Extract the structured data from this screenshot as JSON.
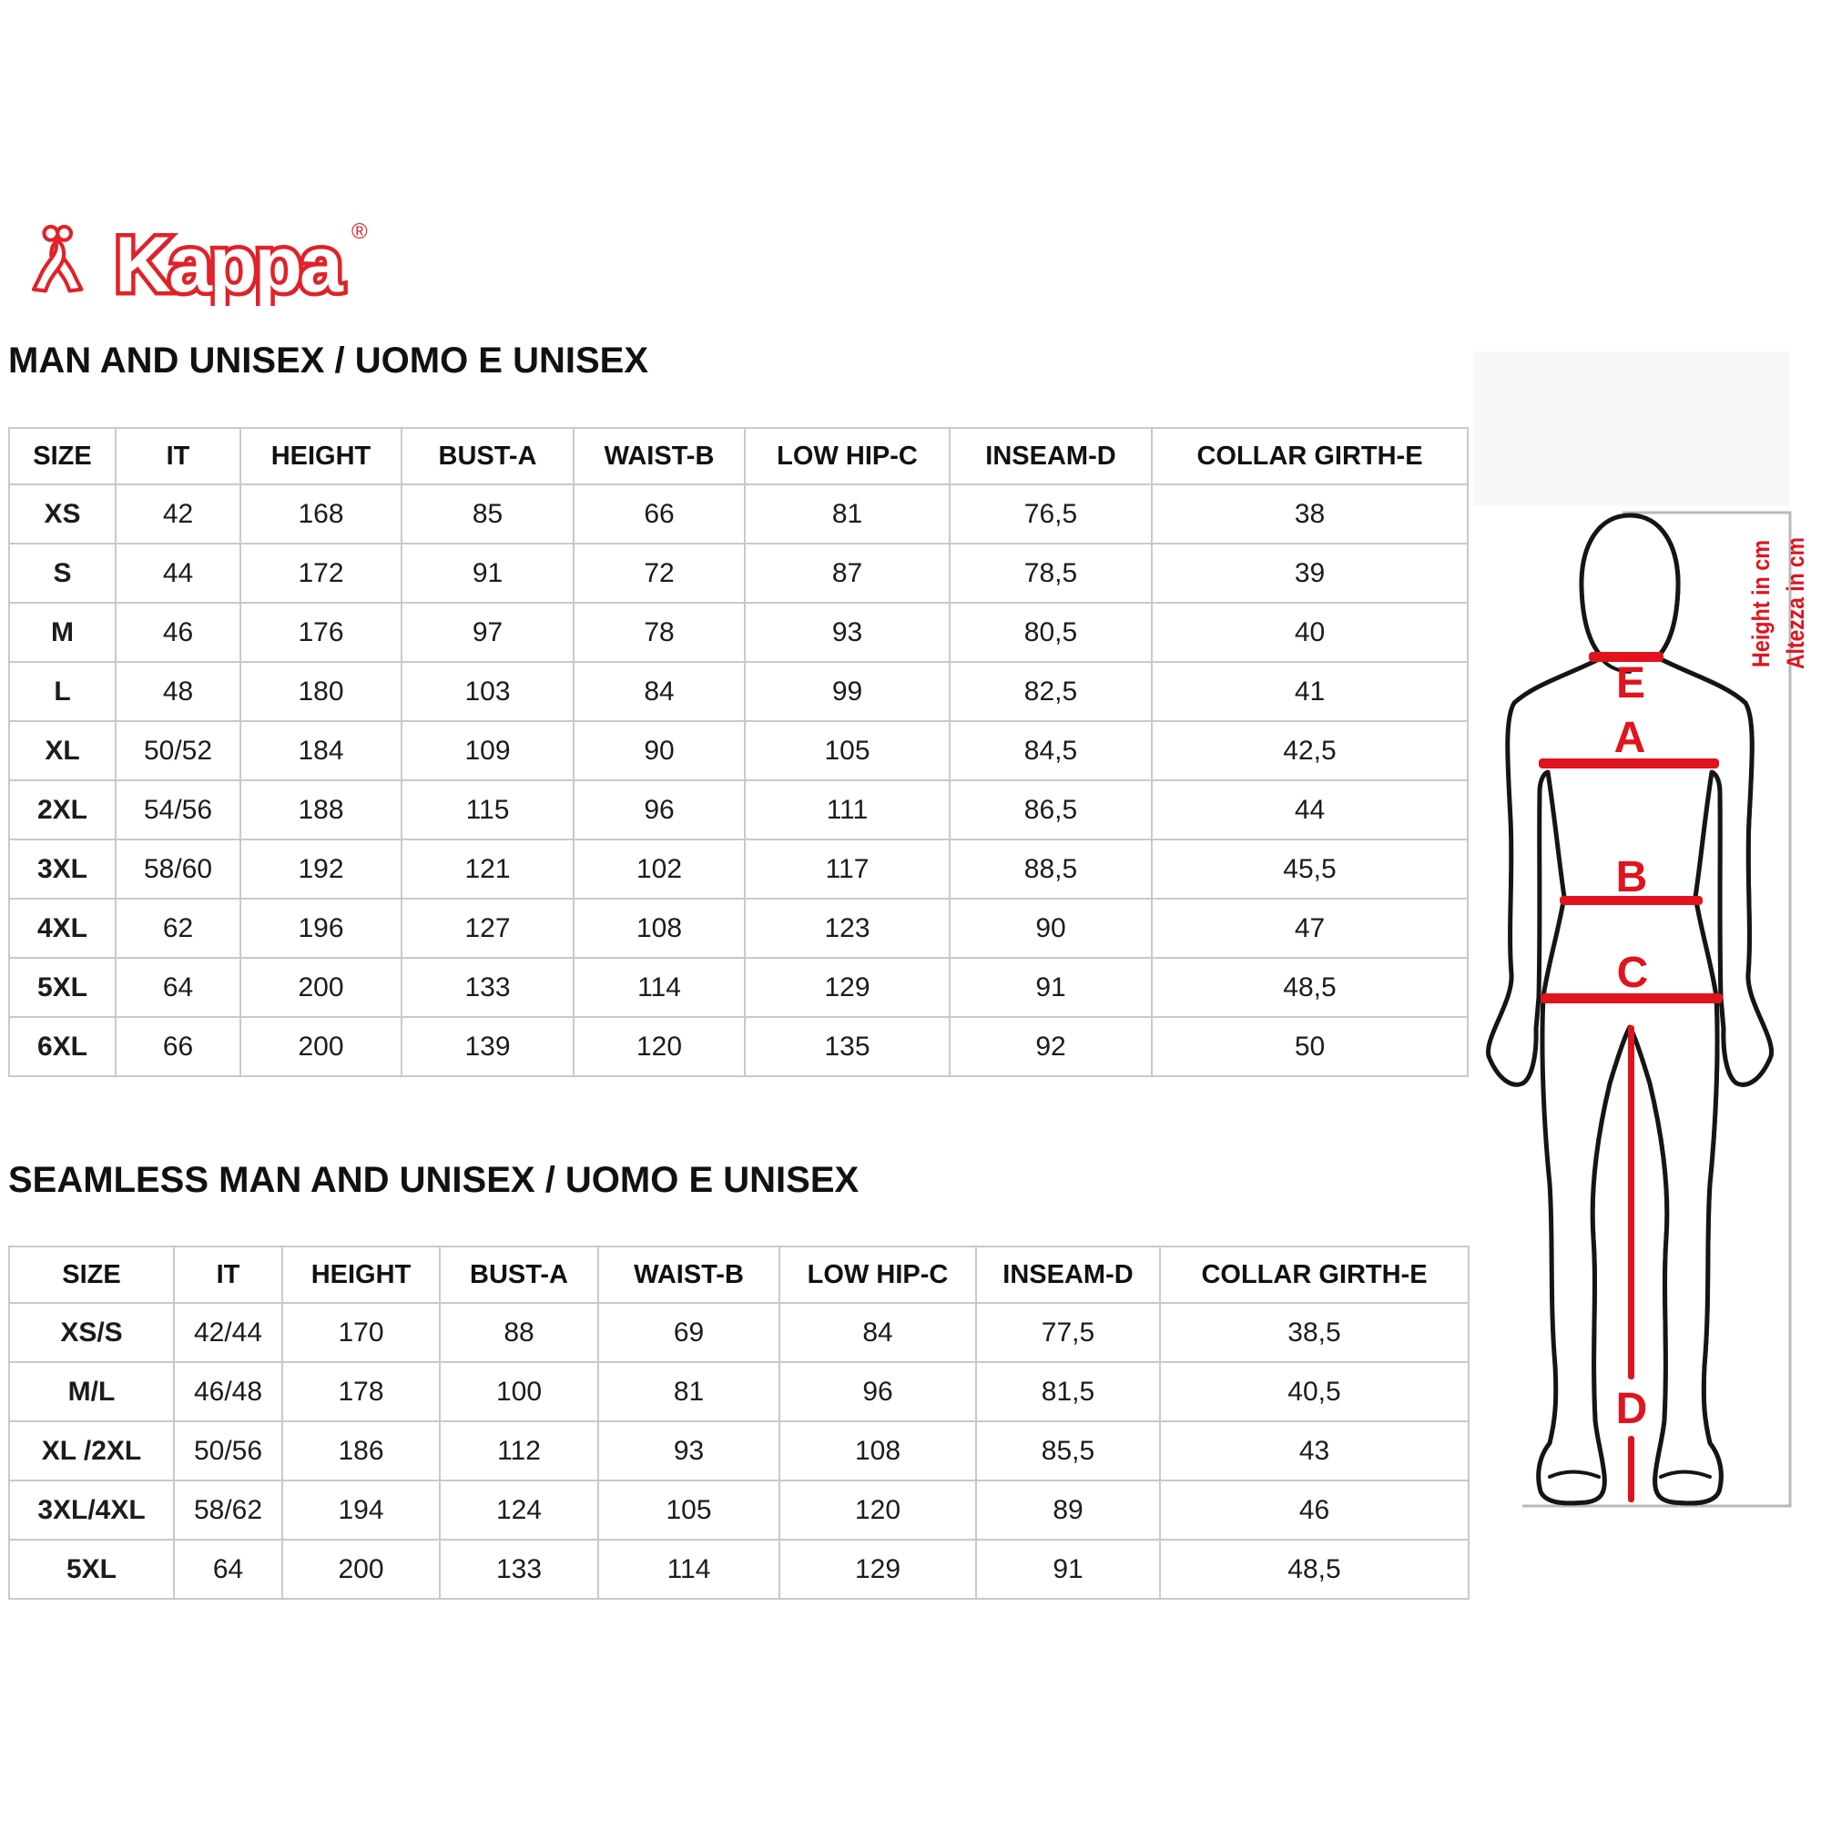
{
  "logo": {
    "brand": "Kappa",
    "registered": "®"
  },
  "colors": {
    "brand_red": "#e22128",
    "mark_red": "#e0141e",
    "grid_gray": "#c9c9c9",
    "frame_gray": "#b8b8b8"
  },
  "tables": [
    {
      "title": "MAN AND UNISEX / UOMO E UNISEX",
      "headers": [
        "SIZE",
        "IT",
        "HEIGHT",
        "BUST-A",
        "WAIST-B",
        "LOW HIP-C",
        "INSEAM-D",
        "COLLAR GIRTH-E"
      ],
      "rows": [
        [
          "XS",
          "42",
          "168",
          "85",
          "66",
          "81",
          "76,5",
          "38"
        ],
        [
          "S",
          "44",
          "172",
          "91",
          "72",
          "87",
          "78,5",
          "39"
        ],
        [
          "M",
          "46",
          "176",
          "97",
          "78",
          "93",
          "80,5",
          "40"
        ],
        [
          "L",
          "48",
          "180",
          "103",
          "84",
          "99",
          "82,5",
          "41"
        ],
        [
          "XL",
          "50/52",
          "184",
          "109",
          "90",
          "105",
          "84,5",
          "42,5"
        ],
        [
          "2XL",
          "54/56",
          "188",
          "115",
          "96",
          "111",
          "86,5",
          "44"
        ],
        [
          "3XL",
          "58/60",
          "192",
          "121",
          "102",
          "117",
          "88,5",
          "45,5"
        ],
        [
          "4XL",
          "62",
          "196",
          "127",
          "108",
          "123",
          "90",
          "47"
        ],
        [
          "5XL",
          "64",
          "200",
          "133",
          "114",
          "129",
          "91",
          "48,5"
        ],
        [
          "6XL",
          "66",
          "200",
          "139",
          "120",
          "135",
          "92",
          "50"
        ]
      ]
    },
    {
      "title": "SEAMLESS MAN AND UNISEX / UOMO E UNISEX",
      "headers": [
        "SIZE",
        "IT",
        "HEIGHT",
        "BUST-A",
        "WAIST-B",
        "LOW HIP-C",
        "INSEAM-D",
        "COLLAR GIRTH-E"
      ],
      "rows": [
        [
          "XS/S",
          "42/44",
          "170",
          "88",
          "69",
          "84",
          "77,5",
          "38,5"
        ],
        [
          "M/L",
          "46/48",
          "178",
          "100",
          "81",
          "96",
          "81,5",
          "40,5"
        ],
        [
          "XL /2XL",
          "50/56",
          "186",
          "112",
          "93",
          "108",
          "85,5",
          "43"
        ],
        [
          "3XL/4XL",
          "58/62",
          "194",
          "124",
          "105",
          "120",
          "89",
          "46"
        ],
        [
          "5XL",
          "64",
          "200",
          "133",
          "114",
          "129",
          "91",
          "48,5"
        ]
      ]
    }
  ],
  "figure": {
    "labels": {
      "a": "A",
      "b": "B",
      "c": "C",
      "d": "D",
      "e": "E"
    },
    "notes": {
      "en": "Height in cm",
      "it": "Altezza in cm"
    }
  }
}
